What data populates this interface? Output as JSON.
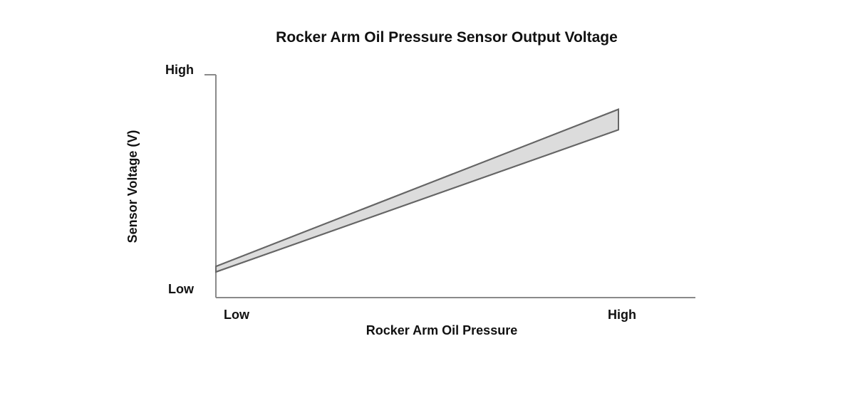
{
  "chart_data": {
    "type": "area",
    "title": "Rocker Arm Oil Pressure Sensor Output Voltage",
    "xlabel": "Rocker Arm Oil Pressure",
    "ylabel": "Sensor Voltage (V)",
    "x_ticks": [
      "Low",
      "High"
    ],
    "y_ticks": [
      "Low",
      "High"
    ],
    "xlim": [
      0,
      1
    ],
    "ylim": [
      0,
      1
    ],
    "grid": false,
    "legend": "none",
    "series": [
      {
        "x": [
          0,
          1
        ],
        "upper": [
          0.14,
          0.845
        ],
        "lower": [
          0.115,
          0.753
        ]
      }
    ],
    "colors": {
      "band_fill": "#dcdcdc",
      "band_stroke": "#666666",
      "axis": "#8a8a8a",
      "text": "#111111"
    }
  }
}
